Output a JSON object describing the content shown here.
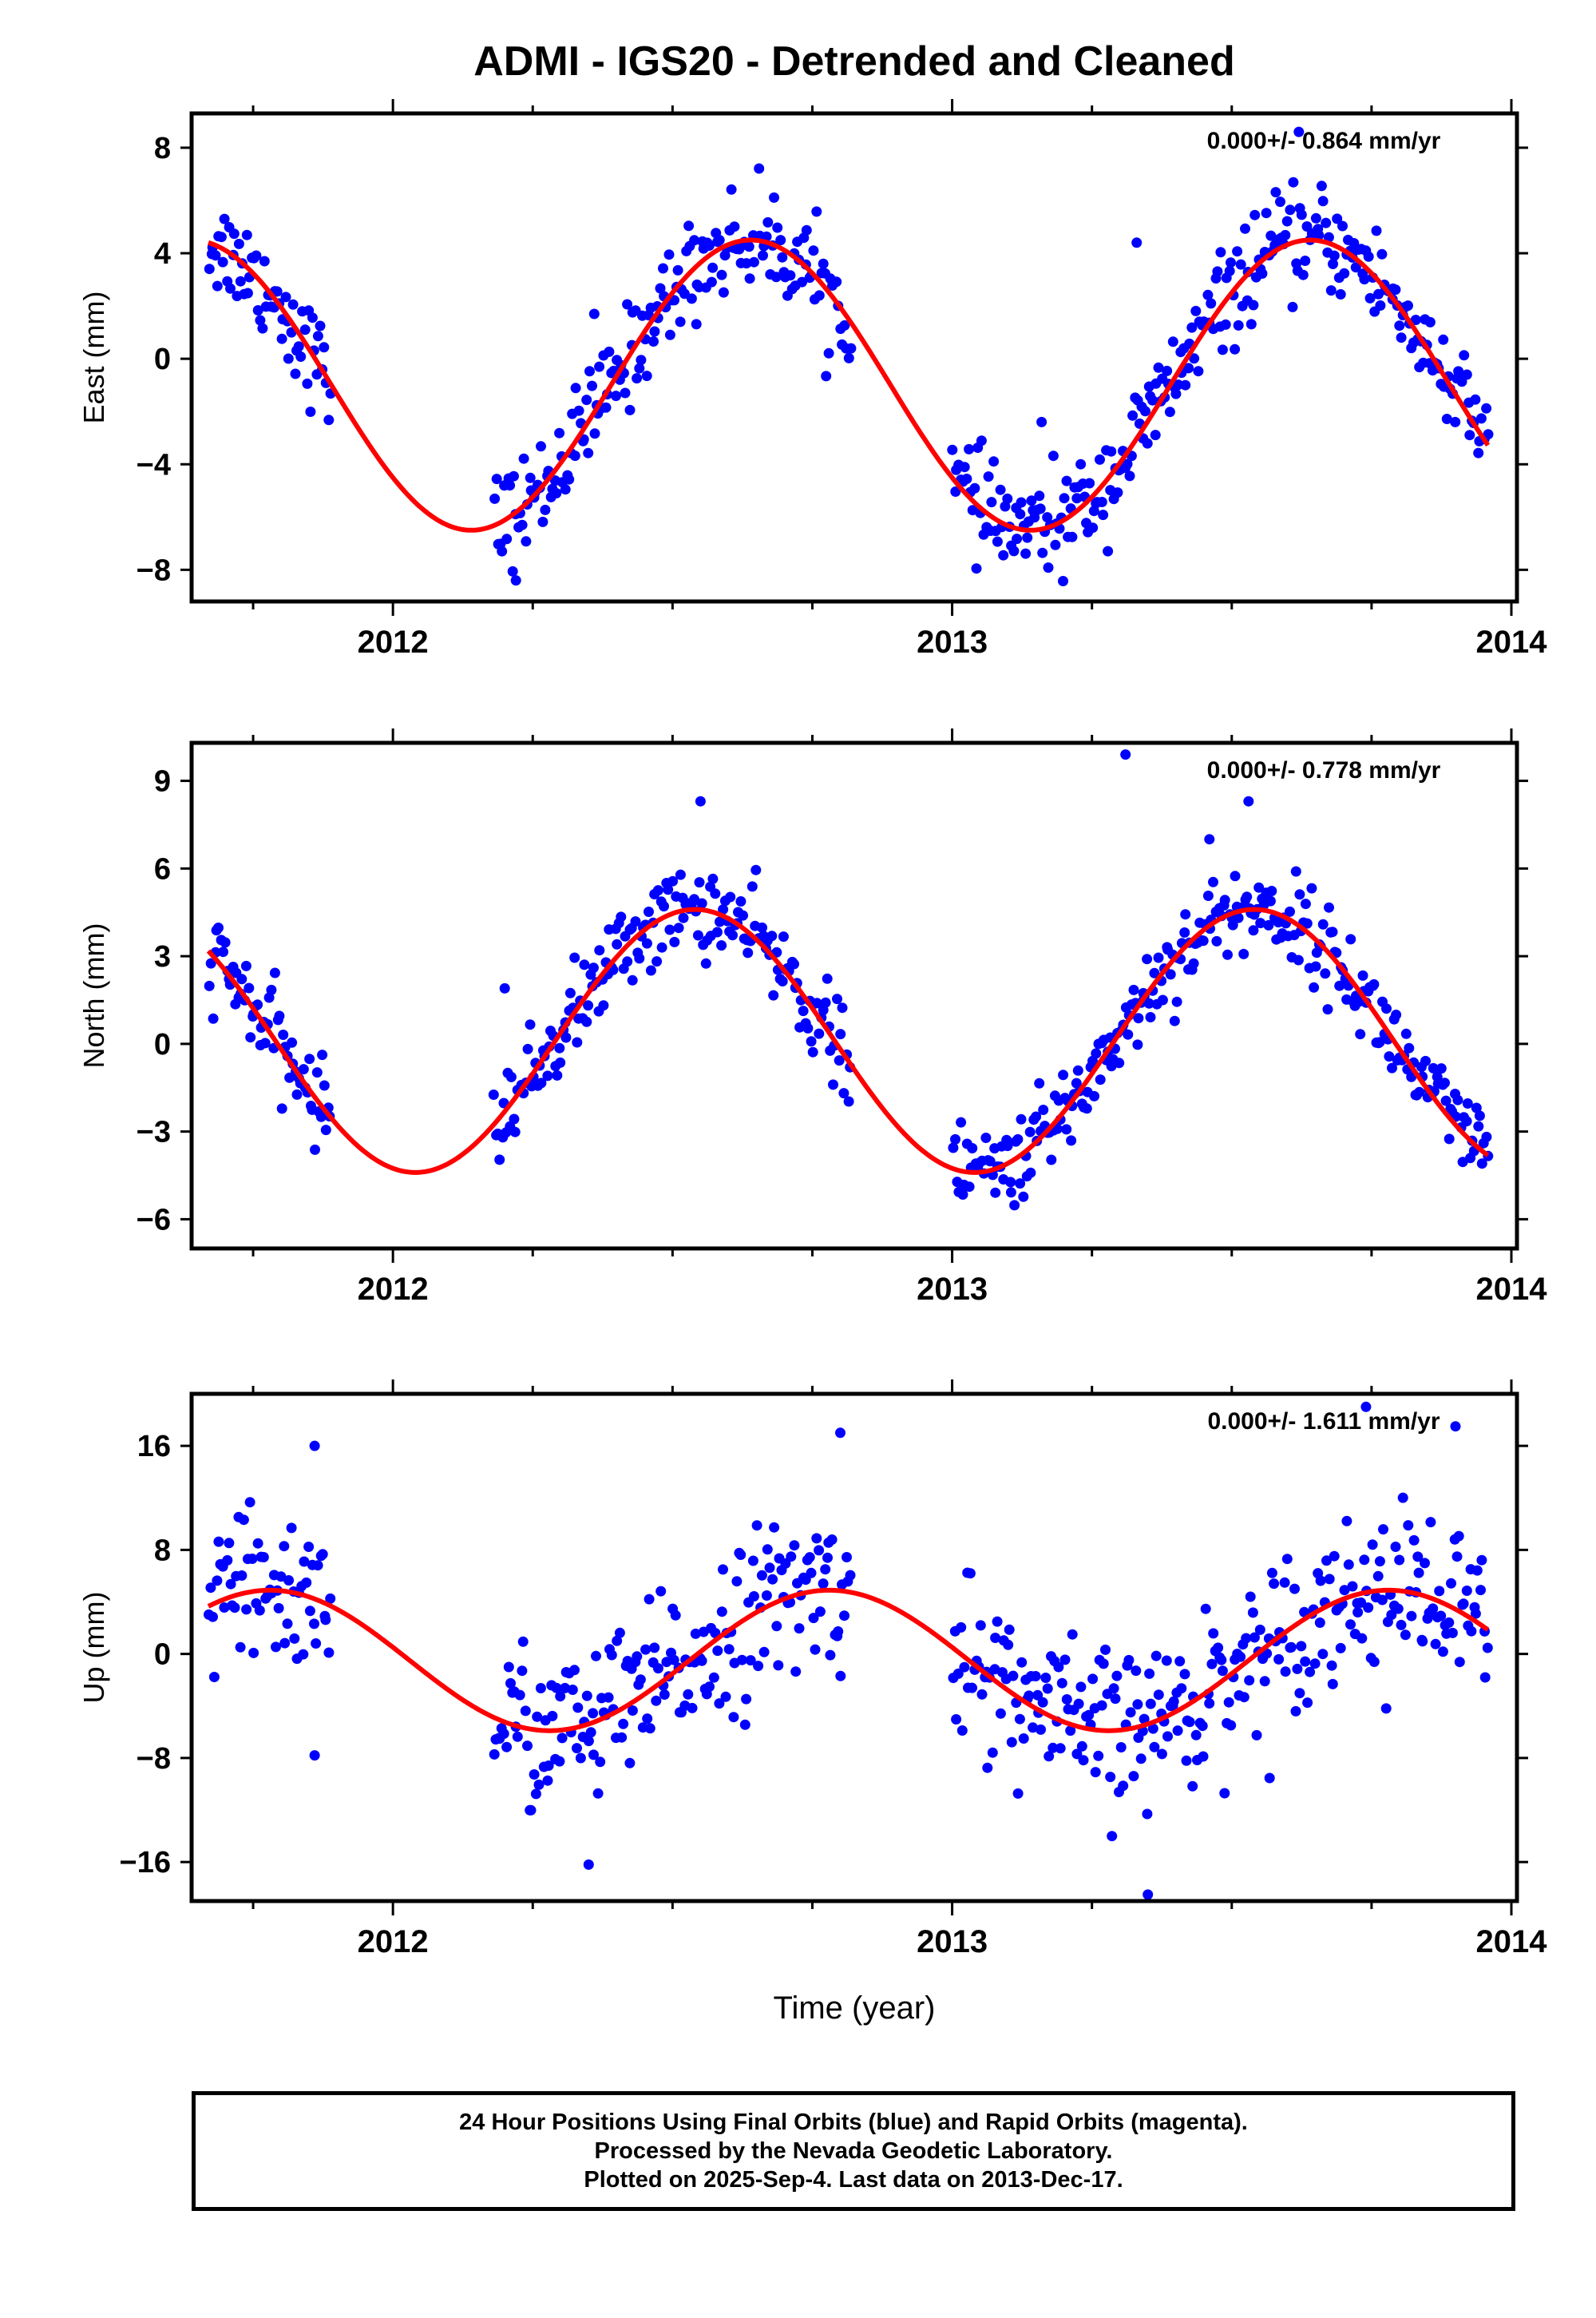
{
  "title": "ADMI - IGS20 - Detrended and Cleaned",
  "xlabel": "Time (year)",
  "footer": {
    "line1": "24 Hour Positions Using Final Orbits (blue) and Rapid Orbits (magenta).",
    "line2": "Processed by the Nevada Geodetic Laboratory.",
    "line3": "Plotted on 2025-Sep-4. Last data on 2013-Dec-17."
  },
  "colors": {
    "points": "#0000ff",
    "model": "#ff0000",
    "frame": "#000000"
  },
  "chart_data": [
    {
      "type": "scatter",
      "component": "east",
      "ylabel": "East (mm)",
      "rate_label": "0.000+/- 0.864 mm/yr",
      "xlim": [
        2011.64,
        2014.01
      ],
      "ylim": [
        -9.2,
        9.3
      ],
      "yticks": [
        -8,
        -4,
        0,
        4,
        8
      ],
      "ytick_labels": [
        "−8",
        "−4",
        "0",
        "4",
        "8"
      ],
      "xticks": [
        2012,
        2013,
        2014
      ],
      "xtick_labels": [
        "2012",
        "2013",
        "2014"
      ],
      "model": {
        "amplitude": 5.5,
        "offset": -1.0,
        "peak_year_frac": 0.64,
        "data_start": 2011.67,
        "data_end": 2013.96
      },
      "data_segments": [
        [
          2011.67,
          2011.89
        ],
        [
          2012.18,
          2012.82
        ],
        [
          2013.0,
          2013.96
        ]
      ],
      "scatter_sigma": 0.95,
      "n_points": 520,
      "outliers": [
        [
          2013.62,
          8.6
        ],
        [
          2012.22,
          -8.4
        ],
        [
          2013.16,
          -2.4
        ],
        [
          2012.36,
          1.7
        ],
        [
          2013.33,
          4.4
        ]
      ]
    },
    {
      "type": "scatter",
      "component": "north",
      "ylabel": "North (mm)",
      "rate_label": "0.000+/- 0.778 mm/yr",
      "xlim": [
        2011.64,
        2014.01
      ],
      "ylim": [
        -7.0,
        10.3
      ],
      "yticks": [
        -6,
        -3,
        0,
        3,
        6,
        9
      ],
      "ytick_labels": [
        "−6",
        "−3",
        "0",
        "3",
        "6",
        "9"
      ],
      "xticks": [
        2012,
        2013,
        2014
      ],
      "xtick_labels": [
        "2012",
        "2013",
        "2014"
      ],
      "model": {
        "amplitude": 4.5,
        "offset": 0.1,
        "peak_year_frac": 0.54,
        "data_start": 2011.67,
        "data_end": 2013.96
      },
      "data_segments": [
        [
          2011.67,
          2011.89
        ],
        [
          2012.18,
          2012.82
        ],
        [
          2013.0,
          2013.96
        ]
      ],
      "scatter_sigma": 0.75,
      "n_points": 520,
      "outliers": [
        [
          2013.31,
          9.9
        ],
        [
          2013.53,
          8.3
        ],
        [
          2012.55,
          8.3
        ],
        [
          2013.46,
          7.0
        ],
        [
          2012.2,
          1.9
        ]
      ]
    },
    {
      "type": "scatter",
      "component": "up",
      "ylabel": "Up (mm)",
      "rate_label": "0.000+/- 1.611 mm/yr",
      "xlim": [
        2011.64,
        2014.01
      ],
      "ylim": [
        -19.0,
        20.0
      ],
      "yticks": [
        -16,
        -8,
        0,
        8,
        16
      ],
      "ytick_labels": [
        "−16",
        "−8",
        "0",
        "8",
        "16"
      ],
      "xticks": [
        2012,
        2013,
        2014
      ],
      "xtick_labels": [
        "2012",
        "2013",
        "2014"
      ],
      "model": {
        "amplitude": 5.4,
        "offset": -0.5,
        "peak_year_frac": 0.78,
        "data_start": 2011.67,
        "data_end": 2013.96
      },
      "data_segments": [
        [
          2011.67,
          2011.89
        ],
        [
          2012.18,
          2012.82
        ],
        [
          2013.0,
          2013.96
        ]
      ],
      "scatter_sigma": 3.1,
      "n_points": 520,
      "outliers": [
        [
          2013.35,
          -18.5
        ],
        [
          2013.74,
          19.0
        ],
        [
          2013.9,
          17.5
        ],
        [
          2012.8,
          17.0
        ],
        [
          2012.35,
          -16.2
        ],
        [
          2011.86,
          16.0
        ],
        [
          2011.86,
          -7.8
        ]
      ]
    }
  ]
}
